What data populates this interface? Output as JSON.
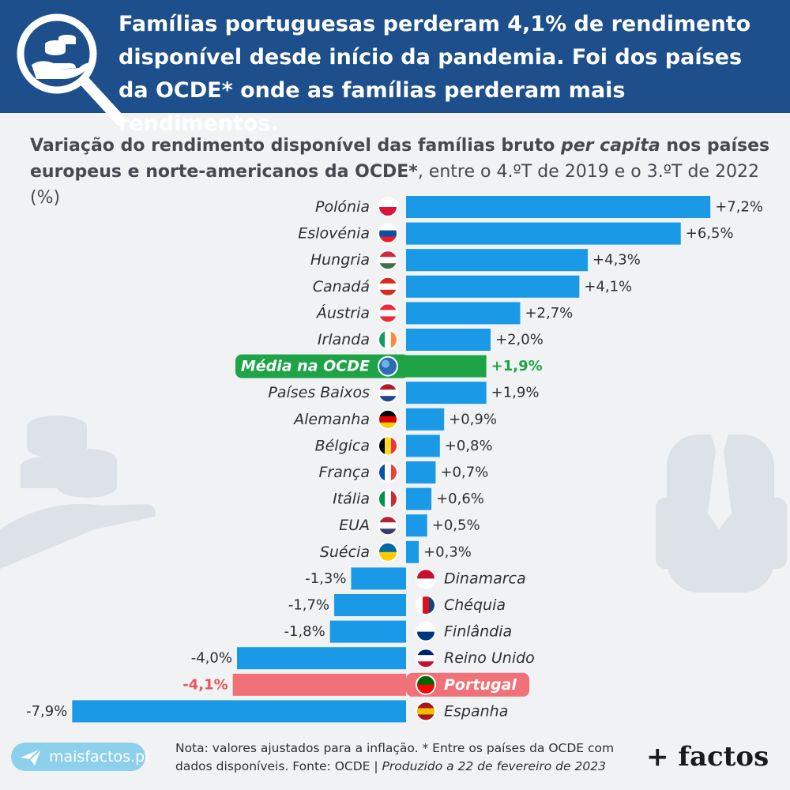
{
  "header": {
    "title": "Famílias portuguesas perderam 4,1% de rendimento disponível desde início da pandemia. Foi dos países da OCDE* onde as famílias perderam mais rendimentos."
  },
  "subtitle": {
    "part1": "Variação do rendimento disponível das famílias bruto ",
    "part2": "per capita",
    "part3": " nos países europeus e norte-americanos da OCDE*",
    "part4": ", entre o 4.ºT de 2019 e o 3.ºT de 2022 (%)"
  },
  "chart_data": {
    "type": "bar",
    "orientation": "horizontal",
    "categories": [
      "Polónia",
      "Eslovénia",
      "Hungria",
      "Canadá",
      "Áustria",
      "Irlanda",
      "Média na OCDE",
      "Países Baixos",
      "Alemanha",
      "Bélgica",
      "França",
      "Itália",
      "EUA",
      "Suécia",
      "Dinamarca",
      "Chéquia",
      "Finlândia",
      "Reino Unido",
      "Portugal",
      "Espanha"
    ],
    "values": [
      7.2,
      6.5,
      4.3,
      4.1,
      2.7,
      2.0,
      1.9,
      1.9,
      0.9,
      0.8,
      0.7,
      0.6,
      0.5,
      0.3,
      -1.3,
      -1.7,
      -1.8,
      -4.0,
      -4.1,
      -7.9
    ],
    "value_labels": [
      "+7,2%",
      "+6,5%",
      "+4,3%",
      "+4,1%",
      "+2,7%",
      "+2,0%",
      "+1,9%",
      "+1,9%",
      "+0,9%",
      "+0,8%",
      "+0,7%",
      "+0,6%",
      "+0,5%",
      "+0,3%",
      "-1,3%",
      "-1,7%",
      "-1,8%",
      "-4,0%",
      "-4,1%",
      "-7,9%"
    ],
    "highlights": {
      "Média na OCDE": "#1fa347",
      "Portugal": "#f07178"
    },
    "bar_color": "#1a99e6",
    "grid": false,
    "legend": false
  },
  "colors": {
    "header_bg": "#1d4f8c",
    "bar": "#1a99e6",
    "average": "#1fa347",
    "portugal": "#f07178"
  },
  "footer": {
    "brand": "maisfactos.pt",
    "note": "Nota: valores ajustados para a inflação. * Entre os países da OCDE com dados disponíveis. Fonte: OCDE | ",
    "produced": "Produzido a 22 de fevereiro de 2023",
    "logo": "+ factos"
  }
}
